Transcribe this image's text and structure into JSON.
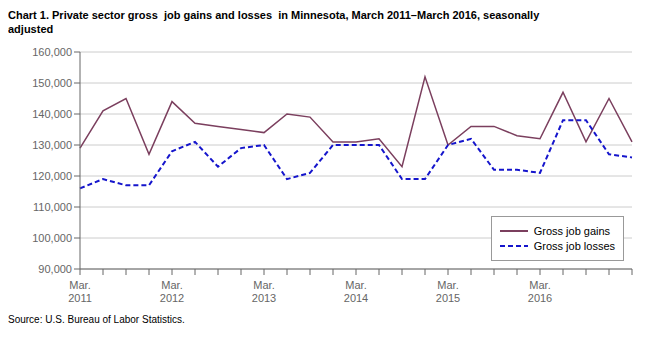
{
  "chart_data": {
    "type": "line",
    "title": "Chart 1. Private sector gross  job gains and losses  in Minnesota, March 2011–March 2016, seasonally\nadjusted",
    "annotations": [
      "Source: U.S. Bureau of Labor Statistics."
    ],
    "categories": [
      "Mar.\n2011",
      null,
      null,
      null,
      "Mar.\n2012",
      null,
      null,
      null,
      "Mar.\n2013",
      null,
      null,
      null,
      "Mar.\n2014",
      null,
      null,
      null,
      "Mar.\n2015",
      null,
      null,
      null,
      "Mar.\n2016",
      null,
      null,
      null,
      null
    ],
    "series": [
      {
        "name": "Gross job gains",
        "color": "#7B3F5E",
        "line_style": "solid",
        "values": [
          129000,
          141000,
          145000,
          127000,
          144000,
          137000,
          136000,
          135000,
          134000,
          140000,
          139000,
          131000,
          131000,
          132000,
          123000,
          152000,
          130000,
          136000,
          136000,
          133000,
          132000,
          147000,
          131000,
          145000,
          131000
        ]
      },
      {
        "name": "Gross job losses",
        "color": "#1515CC",
        "line_style": "dashed",
        "values": [
          116000,
          119000,
          117000,
          117000,
          128000,
          131000,
          123000,
          129000,
          130000,
          119000,
          121000,
          130000,
          130000,
          130000,
          119000,
          119000,
          130000,
          132000,
          122000,
          122000,
          121000,
          138000,
          138000,
          127000,
          126000
        ]
      }
    ],
    "ylim": [
      90000,
      160000
    ],
    "yticks": [
      {
        "value": 90000,
        "label": "90,000"
      },
      {
        "value": 100000,
        "label": "100,000"
      },
      {
        "value": 110000,
        "label": "110,000"
      },
      {
        "value": 120000,
        "label": "120,000"
      },
      {
        "value": 130000,
        "label": "130,000"
      },
      {
        "value": 140000,
        "label": "140,000"
      },
      {
        "value": 150000,
        "label": "150,000"
      },
      {
        "value": 160000,
        "label": "160,000"
      }
    ],
    "grid": true,
    "legend": "lower right"
  }
}
